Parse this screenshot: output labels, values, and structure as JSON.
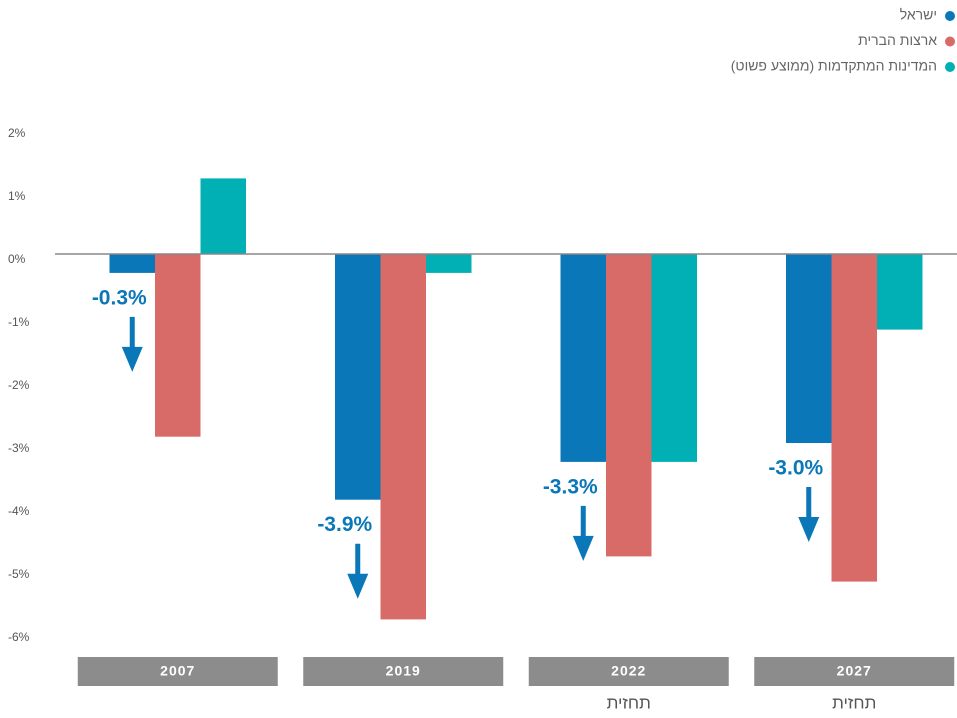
{
  "chart_data": {
    "type": "bar",
    "categories": [
      "2007",
      "2019",
      "2022",
      "2027"
    ],
    "notes": [
      null,
      null,
      "תחזית",
      "תחזית"
    ],
    "series": [
      {
        "name": "ישראל",
        "color": "#0a77b8",
        "values": [
          -0.3,
          -3.9,
          -3.3,
          -3.0
        ],
        "value_labels": [
          "-0.3%",
          "-3.9%",
          "-3.3%",
          "-3.0%"
        ]
      },
      {
        "name": "ארצות הברית",
        "color": "#d86a68",
        "values": [
          -2.9,
          -5.8,
          -4.8,
          -5.2
        ]
      },
      {
        "name": "המדינות המתקדמות (ממוצע פשוט)",
        "color": "#00b0b5",
        "values": [
          1.2,
          -0.3,
          -3.3,
          -1.2
        ]
      }
    ],
    "ylim": [
      -6,
      2
    ],
    "yticks": [
      {
        "value": 2,
        "label": "2%"
      },
      {
        "value": 1,
        "label": "1%"
      },
      {
        "value": 0,
        "label": "0%"
      },
      {
        "value": -1,
        "label": "-1%"
      },
      {
        "value": -2,
        "label": "-2%"
      },
      {
        "value": -3,
        "label": "-3%"
      },
      {
        "value": -4,
        "label": "-4%"
      },
      {
        "value": -5,
        "label": "-5%"
      },
      {
        "value": -6,
        "label": "-6%"
      }
    ]
  }
}
